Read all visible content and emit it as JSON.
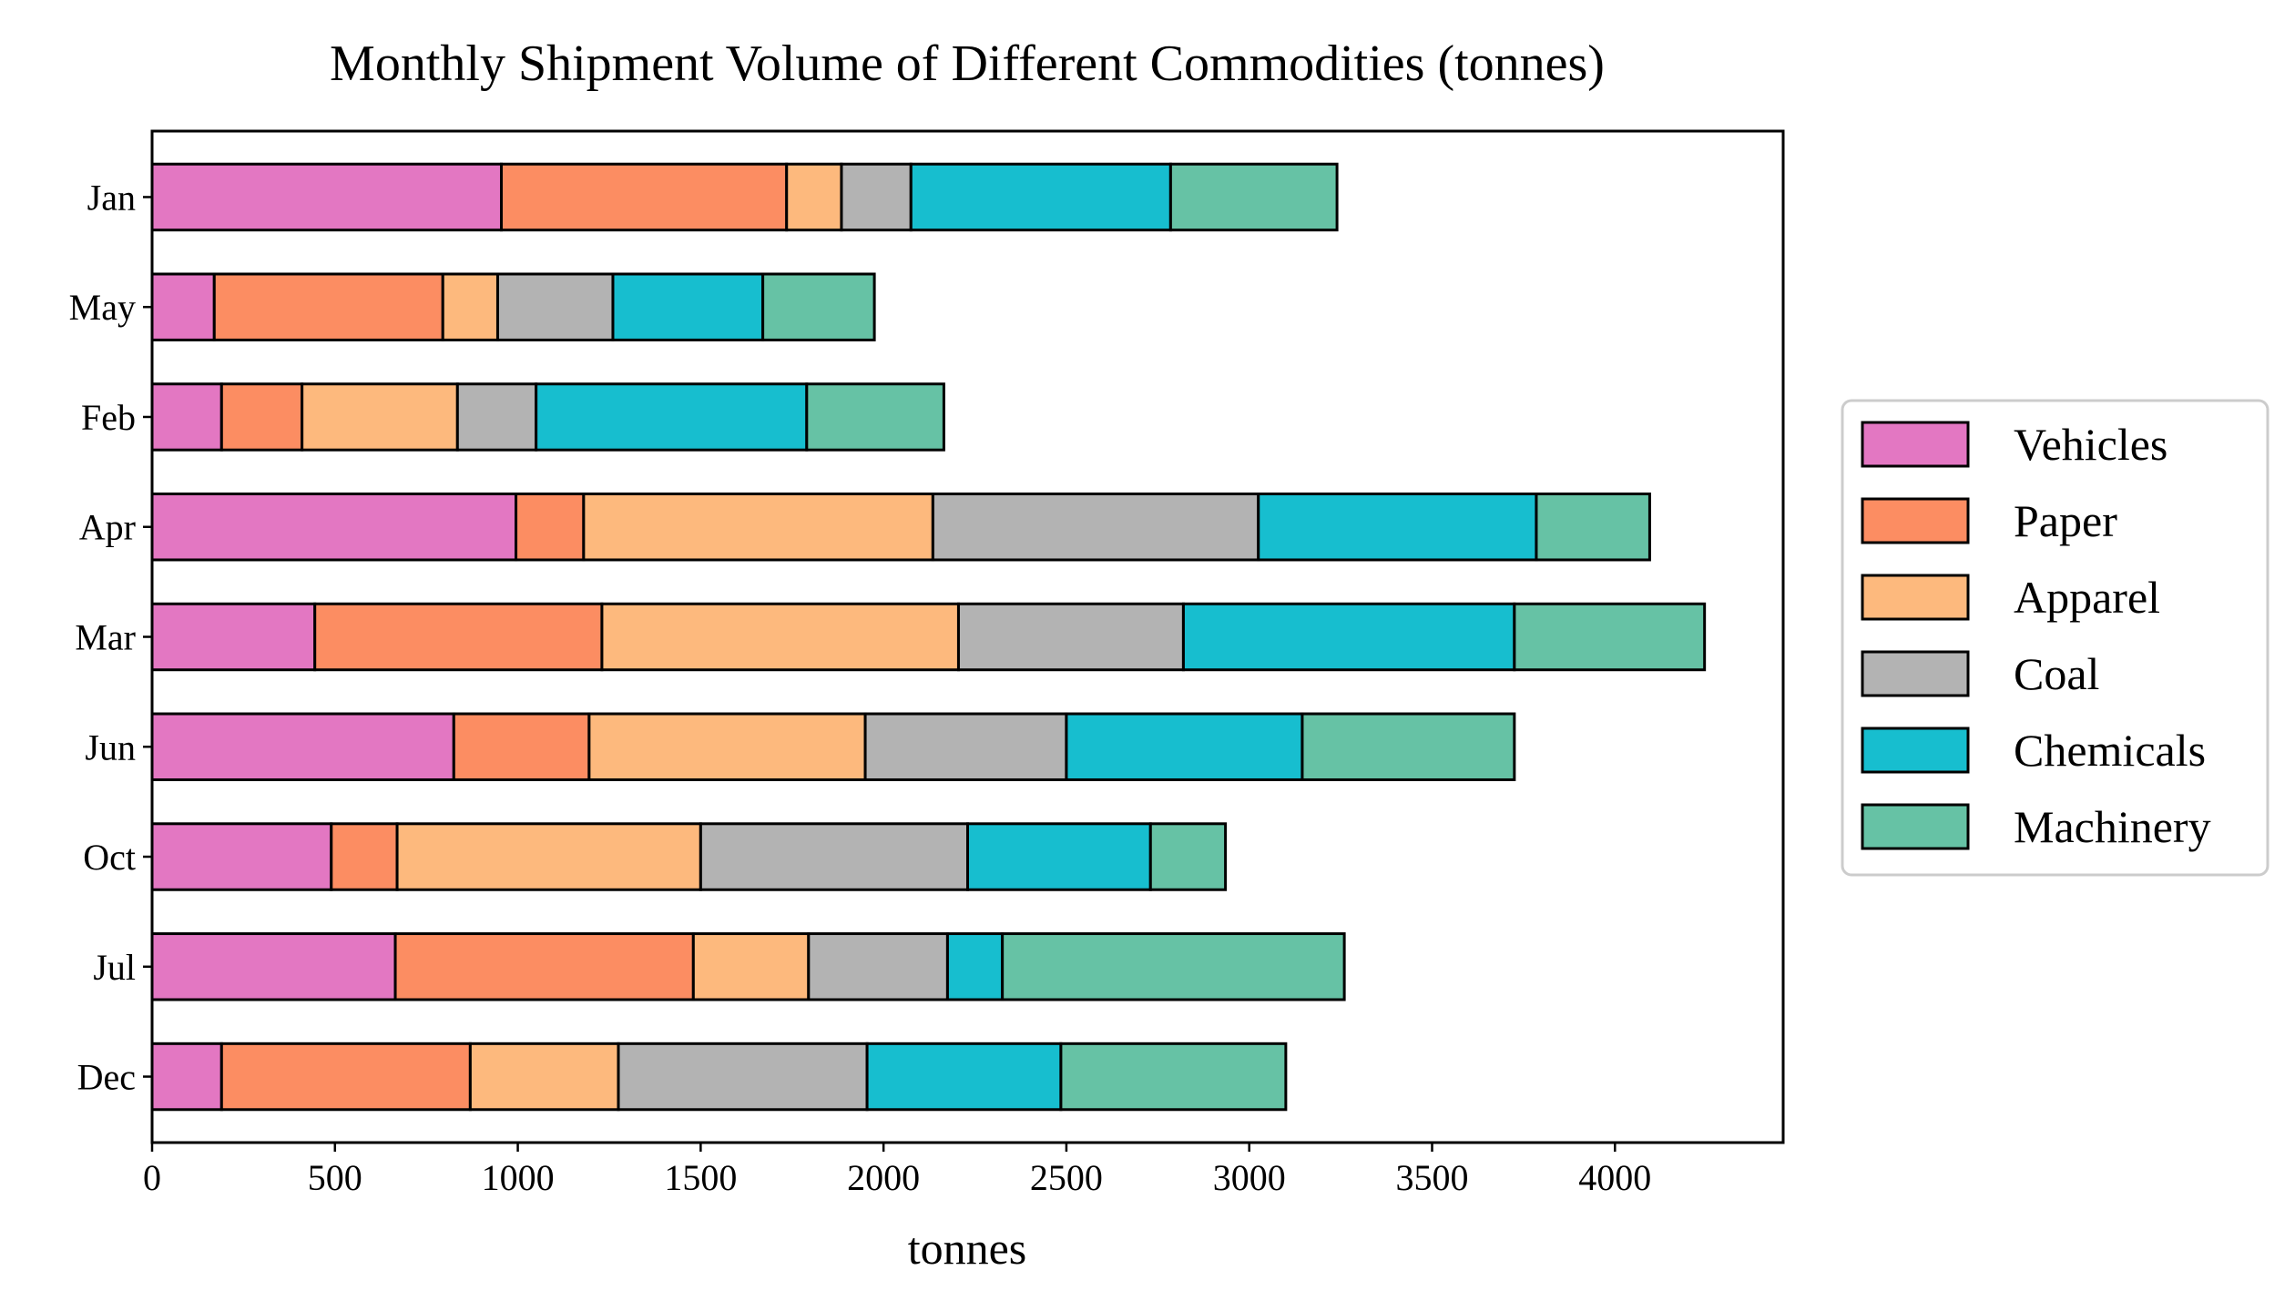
{
  "chart_data": {
    "type": "bar",
    "orientation": "horizontal",
    "stacked": true,
    "title": "Monthly Shipment Volume of Different Commodities (tonnes)",
    "xlabel": "tonnes",
    "ylabel": "",
    "categories": [
      "Jan",
      "May",
      "Feb",
      "Apr",
      "Mar",
      "Jun",
      "Oct",
      "Jul",
      "Dec"
    ],
    "xlim": [
      0,
      4460
    ],
    "xticks": [
      0,
      500,
      1000,
      1500,
      2000,
      2500,
      3000,
      3500,
      4000
    ],
    "xtick_labels": [
      "0",
      "500",
      "1000",
      "1500",
      "2000",
      "2500",
      "3000",
      "3500",
      "4000"
    ],
    "grid": false,
    "legend_position": "right",
    "series": [
      {
        "name": "Vehicles",
        "color": "#e377c2",
        "values": [
          955,
          170,
          190,
          995,
          445,
          825,
          490,
          665,
          190
        ]
      },
      {
        "name": "Paper",
        "color": "#fc8d62",
        "values": [
          780,
          625,
          220,
          185,
          785,
          370,
          180,
          815,
          680
        ]
      },
      {
        "name": "Apparel",
        "color": "#fdb97d",
        "values": [
          150,
          150,
          425,
          955,
          975,
          755,
          830,
          315,
          405
        ]
      },
      {
        "name": "Coal",
        "color": "#b3b3b3",
        "values": [
          190,
          315,
          215,
          890,
          615,
          550,
          730,
          380,
          680
        ]
      },
      {
        "name": "Chemicals",
        "color": "#17becf",
        "values": [
          710,
          410,
          740,
          760,
          905,
          645,
          500,
          150,
          530
        ]
      },
      {
        "name": "Machinery",
        "color": "#66c2a5",
        "values": [
          455,
          305,
          375,
          310,
          520,
          580,
          205,
          935,
          615
        ]
      }
    ]
  }
}
